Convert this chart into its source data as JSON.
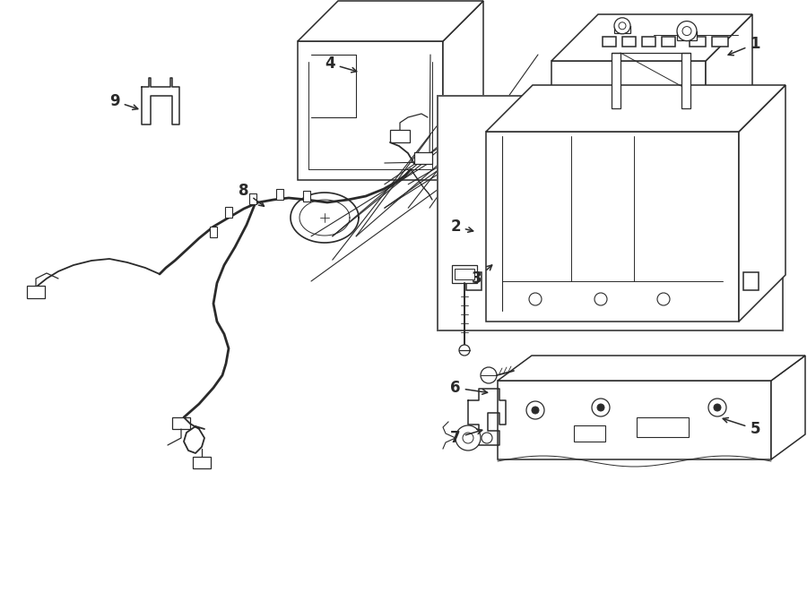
{
  "bg": "#ffffff",
  "lc": "#2a2a2a",
  "lw": 1.1,
  "fig_w": 9.0,
  "fig_h": 6.61,
  "dpi": 100,
  "labels": {
    "1": [
      8.42,
      6.12,
      8.08,
      5.98
    ],
    "2": [
      5.08,
      4.08,
      5.32,
      4.02
    ],
    "3": [
      5.32,
      3.5,
      5.52,
      3.68
    ],
    "4": [
      3.68,
      5.9,
      4.02,
      5.8
    ],
    "5": [
      8.42,
      1.82,
      8.02,
      1.95
    ],
    "6": [
      5.08,
      2.28,
      5.48,
      2.22
    ],
    "7": [
      5.08,
      1.72,
      5.42,
      1.82
    ],
    "8": [
      2.72,
      4.48,
      2.98,
      4.28
    ],
    "9": [
      1.28,
      5.48,
      1.58,
      5.38
    ]
  }
}
